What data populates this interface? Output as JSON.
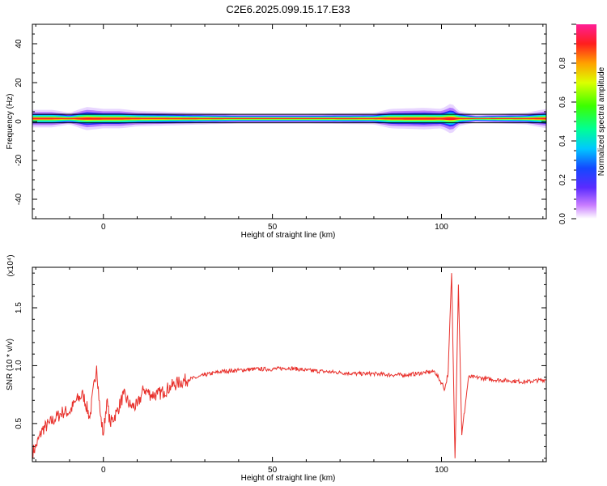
{
  "title": "C2E6.2025.099.15.17.E33",
  "chart_data": [
    {
      "type": "heatmap",
      "xlabel": "Height of straight line (km)",
      "ylabel": "Frequency (Hz)",
      "xlim": [
        -21,
        131
      ],
      "ylim": [
        -50,
        50
      ],
      "xticks": [
        0,
        50,
        100
      ],
      "yticks": [
        -40,
        -20,
        0,
        20,
        40
      ],
      "center_frequency": 1.5,
      "colorbar": {
        "label": "Normalized spectral amplitude",
        "range": [
          0,
          1
        ],
        "ticks": [
          0.0,
          0.2,
          0.4,
          0.6,
          0.8
        ]
      },
      "band_halfwidth_hz": [
        [
          -21,
          4.5
        ],
        [
          -15,
          4.5
        ],
        [
          -10,
          3
        ],
        [
          -5,
          6
        ],
        [
          0,
          5
        ],
        [
          5,
          5
        ],
        [
          10,
          4
        ],
        [
          20,
          3.5
        ],
        [
          40,
          2.5
        ],
        [
          60,
          2.5
        ],
        [
          80,
          3
        ],
        [
          85,
          5
        ],
        [
          95,
          5.5
        ],
        [
          100,
          5
        ],
        [
          103,
          8
        ],
        [
          105,
          4
        ],
        [
          110,
          2
        ],
        [
          125,
          3
        ],
        [
          131,
          5
        ]
      ]
    },
    {
      "type": "line",
      "xlabel": "Height of straight line (km)",
      "ylabel": "SNR (10 * v/v)",
      "scale_label": "(x10⁴)",
      "xlim": [
        -21,
        131
      ],
      "ylim": [
        0.17,
        1.85
      ],
      "xticks": [
        0,
        50,
        100
      ],
      "yticks": [
        0.5,
        1.0,
        1.5
      ],
      "color": "#e8302b",
      "series": [
        {
          "name": "",
          "x": [
            -21,
            -20,
            -18,
            -16,
            -14,
            -12,
            -10,
            -8,
            -6,
            -4,
            -2,
            -1,
            0,
            1,
            2,
            4,
            6,
            8,
            10,
            12,
            14,
            16,
            18,
            20,
            22,
            25,
            28,
            30,
            35,
            40,
            45,
            50,
            55,
            60,
            65,
            70,
            75,
            80,
            85,
            90,
            95,
            98,
            100,
            101,
            102,
            103,
            104,
            105,
            106,
            108,
            110,
            115,
            120,
            125,
            131
          ],
          "y": [
            0.25,
            0.3,
            0.45,
            0.5,
            0.55,
            0.6,
            0.6,
            0.7,
            0.75,
            0.55,
            1.0,
            0.6,
            0.4,
            0.7,
            0.5,
            0.6,
            0.75,
            0.65,
            0.65,
            0.8,
            0.75,
            0.75,
            0.78,
            0.82,
            0.85,
            0.88,
            0.9,
            0.92,
            0.95,
            0.96,
            0.97,
            0.97,
            0.98,
            0.96,
            0.95,
            0.94,
            0.93,
            0.93,
            0.92,
            0.92,
            0.94,
            0.95,
            0.85,
            0.8,
            0.95,
            1.8,
            0.2,
            1.7,
            0.4,
            0.9,
            0.9,
            0.88,
            0.87,
            0.86,
            0.88
          ]
        }
      ]
    }
  ]
}
